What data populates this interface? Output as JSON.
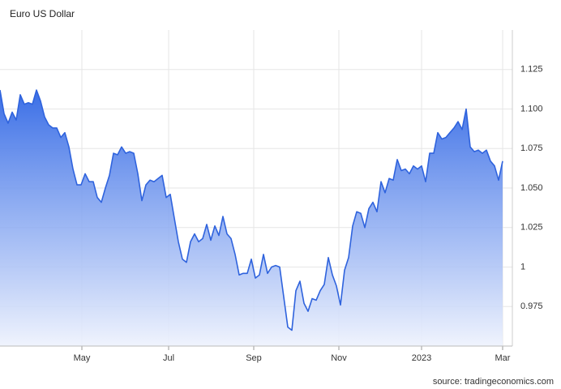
{
  "chart_data": {
    "type": "area",
    "title": "Euro US Dollar",
    "source": "source: tradingeconomics.com",
    "color": "#2f63dd",
    "grid": true,
    "xlim": [
      0,
      126.4
    ],
    "xticks": [
      {
        "value": 20.2,
        "label": "May"
      },
      {
        "value": 41.6,
        "label": "Jul"
      },
      {
        "value": 62.6,
        "label": "Sep"
      },
      {
        "value": 83.6,
        "label": "Nov"
      },
      {
        "value": 104,
        "label": "2023"
      },
      {
        "value": 124,
        "label": "Mar"
      }
    ],
    "ylim": [
      0.95,
      1.15
    ],
    "yticks": [
      0.975,
      1,
      1.025,
      {
        "value": 1.05,
        "label": "1.050"
      },
      1.075,
      {
        "value": 1.1,
        "label": "1.100"
      },
      1.125
    ],
    "values": [
      1.112,
      1.097,
      1.091,
      1.098,
      1.093,
      1.109,
      1.103,
      1.104,
      1.103,
      1.112,
      1.105,
      1.095,
      1.09,
      1.088,
      1.088,
      1.082,
      1.085,
      1.076,
      1.062,
      1.052,
      1.052,
      1.059,
      1.054,
      1.054,
      1.044,
      1.041,
      1.05,
      1.058,
      1.072,
      1.071,
      1.076,
      1.072,
      1.073,
      1.072,
      1.059,
      1.042,
      1.052,
      1.055,
      1.054,
      1.056,
      1.058,
      1.044,
      1.046,
      1.031,
      1.016,
      1.005,
      1.003,
      1.016,
      1.021,
      1.016,
      1.018,
      1.027,
      1.017,
      1.026,
      1.02,
      1.032,
      1.021,
      1.018,
      1.008,
      0.995,
      0.996,
      0.996,
      1.005,
      0.993,
      0.995,
      1.008,
      0.996,
      1.0,
      1.001,
      1.0,
      0.981,
      0.962,
      0.96,
      0.985,
      0.991,
      0.977,
      0.972,
      0.98,
      0.979,
      0.985,
      0.989,
      1.006,
      0.995,
      0.988,
      0.976,
      0.998,
      1.006,
      1.026,
      1.035,
      1.034,
      1.025,
      1.037,
      1.041,
      1.035,
      1.054,
      1.047,
      1.056,
      1.055,
      1.068,
      1.061,
      1.062,
      1.059,
      1.064,
      1.062,
      1.064,
      1.054,
      1.072,
      1.072,
      1.085,
      1.081,
      1.082,
      1.085,
      1.088,
      1.092,
      1.087,
      1.1,
      1.076,
      1.073,
      1.074,
      1.072,
      1.074,
      1.067,
      1.064,
      1.055,
      1.067
    ]
  }
}
